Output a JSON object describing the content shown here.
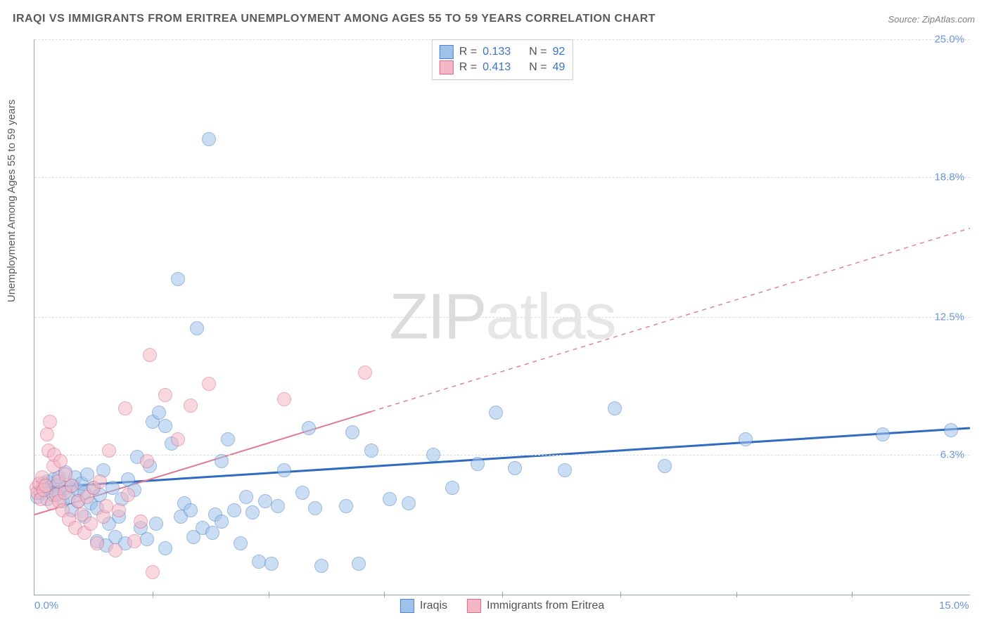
{
  "title": "IRAQI VS IMMIGRANTS FROM ERITREA UNEMPLOYMENT AMONG AGES 55 TO 59 YEARS CORRELATION CHART",
  "source": "Source: ZipAtlas.com",
  "y_axis_label": "Unemployment Among Ages 55 to 59 years",
  "watermark_a": "ZIP",
  "watermark_b": "atlas",
  "chart": {
    "type": "scatter",
    "background_color": "#ffffff",
    "grid_color": "#d9dde2",
    "axis_color": "#98a2ad",
    "label_fontsize": 15,
    "tick_color": "#6a95d6",
    "xlim": [
      0,
      15
    ],
    "ylim": [
      0,
      25
    ],
    "y_ticks": [
      {
        "v": 6.3,
        "label": "6.3%"
      },
      {
        "v": 12.5,
        "label": "12.5%"
      },
      {
        "v": 18.8,
        "label": "18.8%"
      },
      {
        "v": 25.0,
        "label": "25.0%"
      }
    ],
    "x_ticks_major": [
      0,
      15
    ],
    "x_tick_labels": {
      "0": "0.0%",
      "15": "15.0%"
    },
    "x_ticks_minor": [
      1.9,
      3.75,
      5.6,
      7.5,
      9.4,
      11.25,
      13.1
    ],
    "marker_radius": 9,
    "marker_opacity": 0.55,
    "series": [
      {
        "name": "Iraqis",
        "fill_color": "#9fc2ea",
        "stroke_color": "#4b83c9",
        "R": "0.133",
        "N": "92",
        "points": [
          [
            0.05,
            4.4
          ],
          [
            0.1,
            4.6
          ],
          [
            0.15,
            5.0
          ],
          [
            0.2,
            4.3
          ],
          [
            0.2,
            5.1
          ],
          [
            0.25,
            4.8
          ],
          [
            0.3,
            4.5
          ],
          [
            0.3,
            5.2
          ],
          [
            0.35,
            4.9
          ],
          [
            0.4,
            4.6
          ],
          [
            0.4,
            5.3
          ],
          [
            0.45,
            4.2
          ],
          [
            0.5,
            4.8
          ],
          [
            0.5,
            5.5
          ],
          [
            0.55,
            4.4
          ],
          [
            0.6,
            4.9
          ],
          [
            0.6,
            3.8
          ],
          [
            0.65,
            5.3
          ],
          [
            0.7,
            4.2
          ],
          [
            0.7,
            4.7
          ],
          [
            0.75,
            5.0
          ],
          [
            0.8,
            3.5
          ],
          [
            0.8,
            4.6
          ],
          [
            0.85,
            5.4
          ],
          [
            0.9,
            4.1
          ],
          [
            0.95,
            4.8
          ],
          [
            1.0,
            2.4
          ],
          [
            1.0,
            3.9
          ],
          [
            1.05,
            4.5
          ],
          [
            1.1,
            5.6
          ],
          [
            1.15,
            2.2
          ],
          [
            1.2,
            3.2
          ],
          [
            1.25,
            4.8
          ],
          [
            1.3,
            2.6
          ],
          [
            1.35,
            3.5
          ],
          [
            1.4,
            4.3
          ],
          [
            1.45,
            2.3
          ],
          [
            1.5,
            5.2
          ],
          [
            1.6,
            4.7
          ],
          [
            1.65,
            6.2
          ],
          [
            1.7,
            3.0
          ],
          [
            1.8,
            2.5
          ],
          [
            1.85,
            5.8
          ],
          [
            1.9,
            7.8
          ],
          [
            1.95,
            3.2
          ],
          [
            2.0,
            8.2
          ],
          [
            2.1,
            7.6
          ],
          [
            2.1,
            2.1
          ],
          [
            2.2,
            6.8
          ],
          [
            2.3,
            14.2
          ],
          [
            2.35,
            3.5
          ],
          [
            2.4,
            4.1
          ],
          [
            2.5,
            3.8
          ],
          [
            2.55,
            2.6
          ],
          [
            2.6,
            12.0
          ],
          [
            2.7,
            3.0
          ],
          [
            2.8,
            20.5
          ],
          [
            2.85,
            2.8
          ],
          [
            2.9,
            3.6
          ],
          [
            3.0,
            6.0
          ],
          [
            3.0,
            3.3
          ],
          [
            3.1,
            7.0
          ],
          [
            3.2,
            3.8
          ],
          [
            3.3,
            2.3
          ],
          [
            3.4,
            4.4
          ],
          [
            3.5,
            3.7
          ],
          [
            3.6,
            1.5
          ],
          [
            3.7,
            4.2
          ],
          [
            3.8,
            1.4
          ],
          [
            3.9,
            4.0
          ],
          [
            4.0,
            5.6
          ],
          [
            4.3,
            4.6
          ],
          [
            4.4,
            7.5
          ],
          [
            4.5,
            3.9
          ],
          [
            4.6,
            1.3
          ],
          [
            5.0,
            4.0
          ],
          [
            5.1,
            7.3
          ],
          [
            5.2,
            1.4
          ],
          [
            5.4,
            6.5
          ],
          [
            5.7,
            4.3
          ],
          [
            6.0,
            4.1
          ],
          [
            6.4,
            6.3
          ],
          [
            6.7,
            4.8
          ],
          [
            7.1,
            5.9
          ],
          [
            7.4,
            8.2
          ],
          [
            7.7,
            5.7
          ],
          [
            8.5,
            5.6
          ],
          [
            9.3,
            8.4
          ],
          [
            10.1,
            5.8
          ],
          [
            11.4,
            7.0
          ],
          [
            13.6,
            7.2
          ],
          [
            14.7,
            7.4
          ]
        ],
        "trend": {
          "y_start": 4.8,
          "y_end": 7.5,
          "color": "#2f6bc0",
          "width": 3,
          "solid_until_x": 15
        }
      },
      {
        "name": "Immigrants from Eritrea",
        "fill_color": "#f4b7c6",
        "stroke_color": "#d76b89",
        "R": "0.413",
        "N": "49",
        "points": [
          [
            0.03,
            4.8
          ],
          [
            0.05,
            4.6
          ],
          [
            0.08,
            5.0
          ],
          [
            0.1,
            4.3
          ],
          [
            0.12,
            5.3
          ],
          [
            0.15,
            4.7
          ],
          [
            0.18,
            4.9
          ],
          [
            0.2,
            7.2
          ],
          [
            0.22,
            6.5
          ],
          [
            0.25,
            7.8
          ],
          [
            0.28,
            4.1
          ],
          [
            0.3,
            5.8
          ],
          [
            0.32,
            6.3
          ],
          [
            0.35,
            4.5
          ],
          [
            0.38,
            5.1
          ],
          [
            0.4,
            4.2
          ],
          [
            0.42,
            6.0
          ],
          [
            0.45,
            3.8
          ],
          [
            0.48,
            4.6
          ],
          [
            0.5,
            5.4
          ],
          [
            0.55,
            3.4
          ],
          [
            0.6,
            4.9
          ],
          [
            0.65,
            3.0
          ],
          [
            0.7,
            4.2
          ],
          [
            0.75,
            3.6
          ],
          [
            0.8,
            2.8
          ],
          [
            0.85,
            4.4
          ],
          [
            0.9,
            3.2
          ],
          [
            0.95,
            4.8
          ],
          [
            1.0,
            2.3
          ],
          [
            1.05,
            5.1
          ],
          [
            1.1,
            3.5
          ],
          [
            1.15,
            4.0
          ],
          [
            1.2,
            6.5
          ],
          [
            1.3,
            2.0
          ],
          [
            1.35,
            3.8
          ],
          [
            1.45,
            8.4
          ],
          [
            1.5,
            4.5
          ],
          [
            1.6,
            2.4
          ],
          [
            1.7,
            3.3
          ],
          [
            1.8,
            6.0
          ],
          [
            1.85,
            10.8
          ],
          [
            1.9,
            1.0
          ],
          [
            2.1,
            9.0
          ],
          [
            2.3,
            7.0
          ],
          [
            2.5,
            8.5
          ],
          [
            2.8,
            9.5
          ],
          [
            4.0,
            8.8
          ],
          [
            5.3,
            10.0
          ]
        ],
        "trend": {
          "y_start": 3.6,
          "y_end": 16.5,
          "color": "#e07a94",
          "width": 2,
          "solid_until_x": 5.4
        }
      }
    ],
    "top_legend_tpl": {
      "R_prefix": "R =",
      "N_prefix": "N ="
    }
  },
  "bottom_legend": [
    {
      "label": "Iraqis",
      "fill": "#9fc2ea",
      "stroke": "#4b83c9"
    },
    {
      "label": "Immigrants from Eritrea",
      "fill": "#f4b7c6",
      "stroke": "#d76b89"
    }
  ]
}
